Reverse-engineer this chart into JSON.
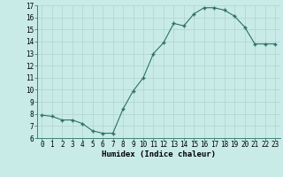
{
  "x": [
    0,
    1,
    2,
    3,
    4,
    5,
    6,
    7,
    8,
    9,
    10,
    11,
    12,
    13,
    14,
    15,
    16,
    17,
    18,
    19,
    20,
    21,
    22,
    23
  ],
  "y": [
    7.9,
    7.8,
    7.5,
    7.5,
    7.2,
    6.6,
    6.4,
    6.4,
    8.4,
    9.9,
    11.0,
    13.0,
    13.9,
    15.5,
    15.3,
    16.3,
    16.8,
    16.8,
    16.6,
    16.1,
    15.2,
    13.8,
    13.8,
    13.8
  ],
  "line_color": "#2d7068",
  "marker_color": "#2d7068",
  "bg_color": "#c8ebe8",
  "grid_color_major": "#b0d4d0",
  "grid_color_minor": "#d0e8e4",
  "xlabel": "Humidex (Indice chaleur)",
  "ylim": [
    6,
    17
  ],
  "xlim_min": -0.5,
  "xlim_max": 23.5,
  "yticks": [
    6,
    7,
    8,
    9,
    10,
    11,
    12,
    13,
    14,
    15,
    16,
    17
  ],
  "xticks": [
    0,
    1,
    2,
    3,
    4,
    5,
    6,
    7,
    8,
    9,
    10,
    11,
    12,
    13,
    14,
    15,
    16,
    17,
    18,
    19,
    20,
    21,
    22,
    23
  ],
  "xlabel_fontsize": 6.5,
  "tick_fontsize": 5.5,
  "font_family": "monospace"
}
